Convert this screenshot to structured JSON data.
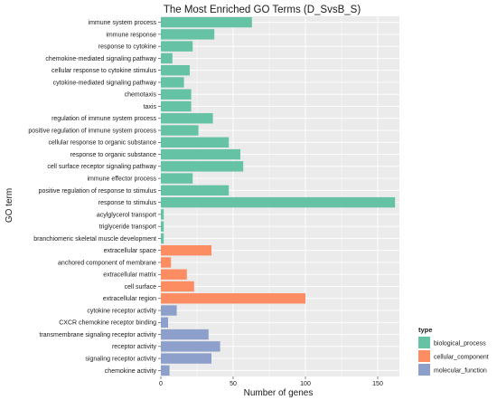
{
  "chart_data": {
    "type": "bar",
    "orientation": "horizontal",
    "title": "The Most Enriched GO Terms (D_SvsB_S)",
    "xlabel": "Number of genes",
    "ylabel": "GO term",
    "xlim": [
      0,
      165
    ],
    "xticks": [
      "0",
      "50",
      "100",
      "150"
    ],
    "xtick_values": [
      0,
      50,
      100,
      150
    ],
    "background": "#ebebeb",
    "grid": true,
    "legend": {
      "title": "type",
      "placement": "right",
      "entries": [
        {
          "name": "biological_process",
          "color": "#66c2a5"
        },
        {
          "name": "cellular_component",
          "color": "#fc8d62"
        },
        {
          "name": "molecular_function",
          "color": "#8da0cb"
        }
      ]
    },
    "bars": [
      {
        "term": "immune system process",
        "value": 63,
        "type": "biological_process"
      },
      {
        "term": "immune response",
        "value": 37,
        "type": "biological_process"
      },
      {
        "term": "response to cytokine",
        "value": 22,
        "type": "biological_process"
      },
      {
        "term": "chemokine-mediated signaling pathway",
        "value": 8,
        "type": "biological_process"
      },
      {
        "term": "cellular response to cytokine stimulus",
        "value": 20,
        "type": "biological_process"
      },
      {
        "term": "cytokine-mediated signaling pathway",
        "value": 16,
        "type": "biological_process"
      },
      {
        "term": "chemotaxis",
        "value": 21,
        "type": "biological_process"
      },
      {
        "term": "taxis",
        "value": 21,
        "type": "biological_process"
      },
      {
        "term": "regulation of immune system process",
        "value": 36,
        "type": "biological_process"
      },
      {
        "term": "positive regulation of immune system process",
        "value": 26,
        "type": "biological_process"
      },
      {
        "term": "cellular response to organic substance",
        "value": 47,
        "type": "biological_process"
      },
      {
        "term": "response to organic substance",
        "value": 55,
        "type": "biological_process"
      },
      {
        "term": "cell surface receptor signaling pathway",
        "value": 57,
        "type": "biological_process"
      },
      {
        "term": "immune effector process",
        "value": 22,
        "type": "biological_process"
      },
      {
        "term": "positive regulation of response to stimulus",
        "value": 47,
        "type": "biological_process"
      },
      {
        "term": "response to stimulus",
        "value": 162,
        "type": "biological_process"
      },
      {
        "term": "acylglycerol transport",
        "value": 2,
        "type": "biological_process"
      },
      {
        "term": "triglyceride transport",
        "value": 2,
        "type": "biological_process"
      },
      {
        "term": "branchiomeric skeletal muscle development",
        "value": 2,
        "type": "biological_process"
      },
      {
        "term": "extracellular space",
        "value": 35,
        "type": "cellular_component"
      },
      {
        "term": "anchored component of membrane",
        "value": 7,
        "type": "cellular_component"
      },
      {
        "term": "extracellular matrix",
        "value": 18,
        "type": "cellular_component"
      },
      {
        "term": "cell surface",
        "value": 23,
        "type": "cellular_component"
      },
      {
        "term": "extracellular region",
        "value": 100,
        "type": "cellular_component"
      },
      {
        "term": "cytokine receptor activity",
        "value": 11,
        "type": "molecular_function"
      },
      {
        "term": "CXCR chemokine receptor binding",
        "value": 5,
        "type": "molecular_function"
      },
      {
        "term": "transmembrane signaling receptor activity",
        "value": 33,
        "type": "molecular_function"
      },
      {
        "term": "receptor activity",
        "value": 41,
        "type": "molecular_function"
      },
      {
        "term": "signaling receptor activity",
        "value": 35,
        "type": "molecular_function"
      },
      {
        "term": "chemokine activity",
        "value": 6,
        "type": "molecular_function"
      }
    ]
  }
}
